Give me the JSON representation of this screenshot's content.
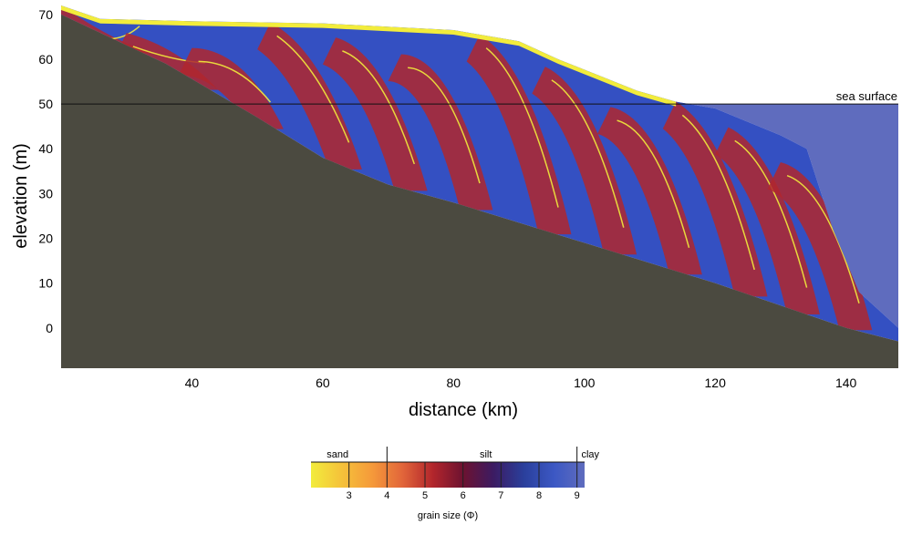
{
  "chart_data": {
    "type": "area",
    "title": "",
    "xlabel": "distance (km)",
    "ylabel": "elevation (m)",
    "xlim": [
      20,
      148
    ],
    "ylim": [
      -9,
      72
    ],
    "x_ticks": [
      40,
      60,
      80,
      100,
      120,
      140
    ],
    "y_ticks": [
      0,
      10,
      20,
      30,
      40,
      50,
      60,
      70
    ],
    "grid": false,
    "sea_level": 50,
    "annotation": "sea surface",
    "basement_surface": {
      "x": [
        20,
        36,
        50,
        60,
        70,
        80,
        100,
        120,
        140,
        148
      ],
      "y": [
        70,
        59,
        47,
        38,
        32,
        28,
        19,
        10,
        0,
        -3
      ]
    },
    "deposit_top_surface": {
      "x": [
        20,
        26,
        40,
        60,
        80,
        90,
        96,
        102,
        108,
        114,
        120,
        125,
        130,
        134,
        138,
        142,
        148
      ],
      "y": [
        72,
        69,
        68.5,
        68,
        66.5,
        64,
        60,
        56.5,
        53,
        50.5,
        49,
        46,
        43,
        40,
        22,
        8,
        0
      ]
    },
    "sediment_fill": {
      "x": [
        148
      ],
      "y": [
        -3
      ]
    },
    "colorbar": {
      "title": "grain size (Φ)",
      "categories": [
        "sand",
        "silt",
        "clay"
      ],
      "category_boundaries": [
        4,
        9
      ],
      "ticks": [
        3,
        4,
        5,
        6,
        7,
        8,
        9
      ],
      "range": [
        2,
        9.2
      ],
      "colors": [
        "#f2ec3c",
        "#f5c23a",
        "#f59a3a",
        "#e2663a",
        "#b3262c",
        "#6d1230",
        "#3c1b62",
        "#2a3f9c",
        "#3c58c4",
        "#5f6cbe"
      ]
    },
    "colors": {
      "basement": "#4b4a40",
      "sea": "#5f6cbe",
      "clay": "#3450c2",
      "silt": "#b0272e",
      "sand": "#f2ec3c"
    }
  }
}
